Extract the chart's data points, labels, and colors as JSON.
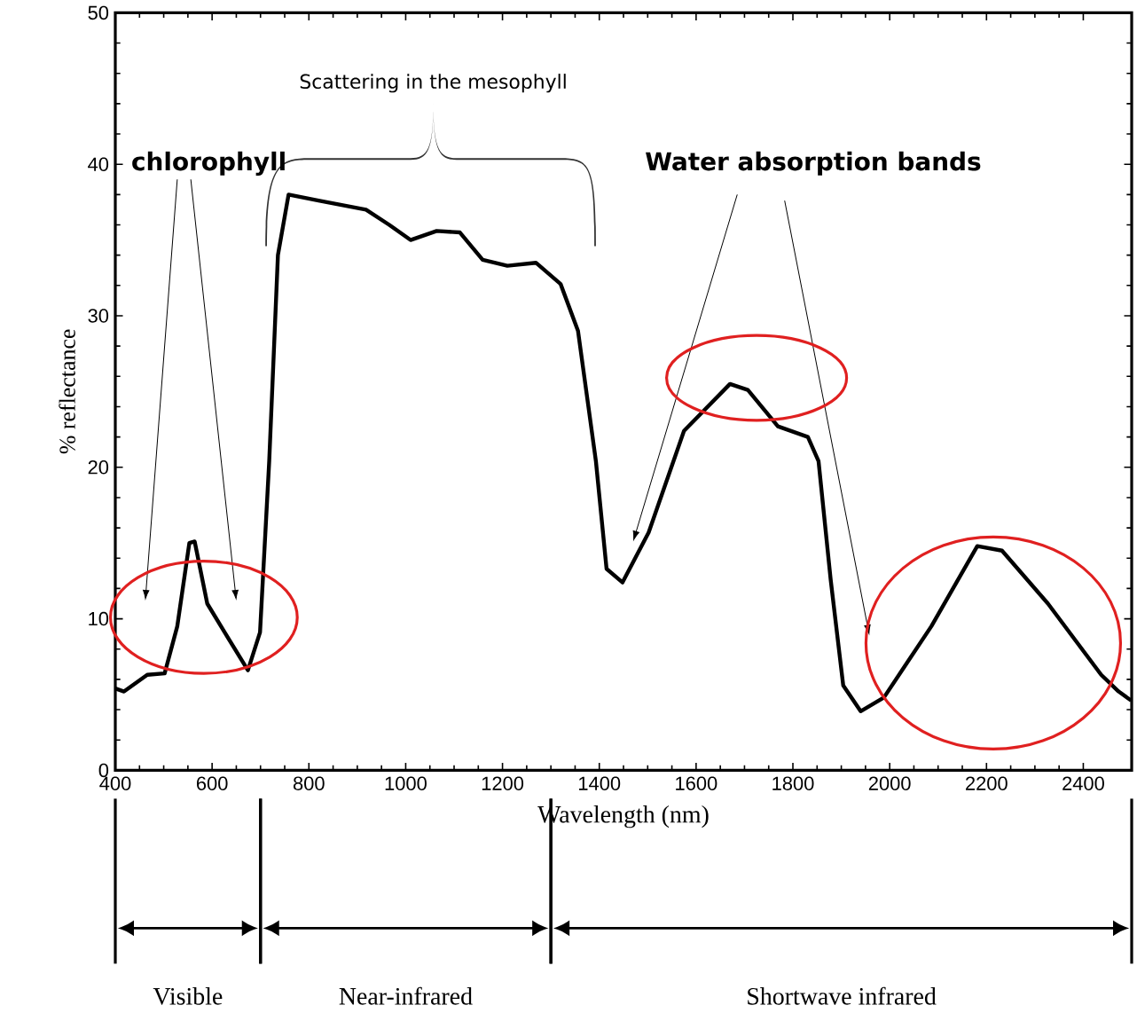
{
  "chart_data": {
    "type": "line",
    "xlabel": "Wavelength (nm)",
    "ylabel": "% reflectance",
    "xlim": [
      400,
      2500
    ],
    "ylim": [
      0,
      50
    ],
    "xticks": [
      400,
      600,
      800,
      1000,
      1200,
      1400,
      1600,
      1800,
      2000,
      2200,
      2400
    ],
    "yticks": [
      0,
      10,
      20,
      30,
      40,
      50
    ],
    "marker": "none",
    "line_style": "solid",
    "series": [
      {
        "color": "#000000",
        "x": [
          400,
          418,
          466,
          502,
          528,
          553,
          564,
          590,
          626,
          674,
          699,
          718,
          736,
          758,
          820,
          918,
          966,
          1010,
          1064,
          1112,
          1159,
          1210,
          1269,
          1320,
          1356,
          1393,
          1415,
          1448,
          1502,
          1575,
          1670,
          1707,
          1769,
          1831,
          1853,
          1878,
          1904,
          1940,
          1988,
          2086,
          2181,
          2232,
          2327,
          2437,
          2473,
          2499
        ],
        "values": [
          5.4,
          5.2,
          6.3,
          6.4,
          9.5,
          15.0,
          15.1,
          11.0,
          9.1,
          6.6,
          9.1,
          20.4,
          34.0,
          38.0,
          37.6,
          37.0,
          36.0,
          35.0,
          35.6,
          35.5,
          33.7,
          33.3,
          33.5,
          32.1,
          29.0,
          20.4,
          13.3,
          12.4,
          15.7,
          22.4,
          25.5,
          25.1,
          22.7,
          22.0,
          20.4,
          12.6,
          5.6,
          3.9,
          4.8,
          9.5,
          14.8,
          14.5,
          11.0,
          6.3,
          5.2,
          4.6
        ]
      }
    ],
    "annotations": [
      "Scattering in the mesophyll",
      "chlorophyll",
      "Water absorption bands",
      "Visible",
      "Near-infrared",
      "Shortwave infrared"
    ]
  }
}
